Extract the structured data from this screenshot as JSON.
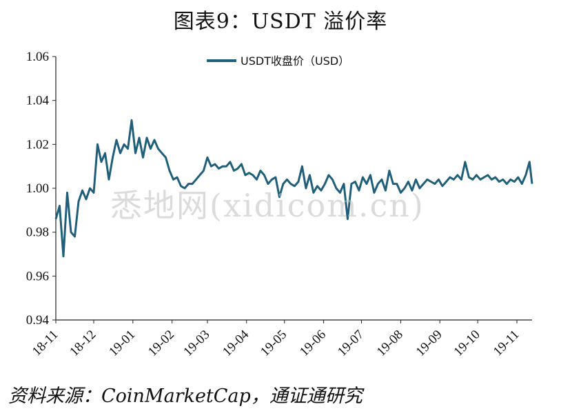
{
  "title": "图表9：USDT 溢价率",
  "source": "资料来源：CoinMarketCap，通证通研究",
  "watermark": "悉地网(xidicom.cn)",
  "colors": {
    "series": "#1f5f7a",
    "axis": "#222222"
  },
  "chart_data": {
    "type": "line",
    "xlabel": "",
    "ylabel": "",
    "ylim": [
      0.94,
      1.06
    ],
    "yticks": [
      "1.06",
      "1.04",
      "1.02",
      "1.00",
      "0.98",
      "0.96",
      "0.94"
    ],
    "xticks": [
      "18-11",
      "18-12",
      "19-01",
      "19-02",
      "19-03",
      "19-04",
      "19-05",
      "19-06",
      "19-07",
      "19-08",
      "19-09",
      "19-10",
      "19-11"
    ],
    "legend": "top-center",
    "grid": false,
    "series": [
      {
        "name": "USDT收盘价（USD）",
        "x": [
          "2018-11-01",
          "2018-11-04",
          "2018-11-07",
          "2018-11-10",
          "2018-11-13",
          "2018-11-16",
          "2018-11-19",
          "2018-11-22",
          "2018-11-25",
          "2018-11-28",
          "2018-12-01",
          "2018-12-04",
          "2018-12-07",
          "2018-12-10",
          "2018-12-13",
          "2018-12-16",
          "2018-12-19",
          "2018-12-22",
          "2018-12-25",
          "2018-12-28",
          "2018-12-31",
          "2019-01-03",
          "2019-01-06",
          "2019-01-09",
          "2019-01-12",
          "2019-01-15",
          "2019-01-18",
          "2019-01-21",
          "2019-01-24",
          "2019-01-27",
          "2019-01-30",
          "2019-02-02",
          "2019-02-05",
          "2019-02-08",
          "2019-02-11",
          "2019-02-14",
          "2019-02-17",
          "2019-02-20",
          "2019-02-23",
          "2019-02-26",
          "2019-03-01",
          "2019-03-04",
          "2019-03-07",
          "2019-03-10",
          "2019-03-13",
          "2019-03-16",
          "2019-03-19",
          "2019-03-22",
          "2019-03-25",
          "2019-03-28",
          "2019-03-31",
          "2019-04-03",
          "2019-04-06",
          "2019-04-09",
          "2019-04-12",
          "2019-04-15",
          "2019-04-18",
          "2019-04-21",
          "2019-04-24",
          "2019-04-27",
          "2019-04-30",
          "2019-05-03",
          "2019-05-06",
          "2019-05-09",
          "2019-05-12",
          "2019-05-15",
          "2019-05-18",
          "2019-05-21",
          "2019-05-24",
          "2019-05-27",
          "2019-05-30",
          "2019-06-02",
          "2019-06-05",
          "2019-06-08",
          "2019-06-11",
          "2019-06-14",
          "2019-06-17",
          "2019-06-20",
          "2019-06-23",
          "2019-06-26",
          "2019-06-29",
          "2019-07-02",
          "2019-07-05",
          "2019-07-08",
          "2019-07-11",
          "2019-07-14",
          "2019-07-17",
          "2019-07-20",
          "2019-07-23",
          "2019-07-26",
          "2019-07-29",
          "2019-08-01",
          "2019-08-04",
          "2019-08-07",
          "2019-08-10",
          "2019-08-13",
          "2019-08-16",
          "2019-08-19",
          "2019-08-22",
          "2019-08-25",
          "2019-08-28",
          "2019-08-31",
          "2019-09-03",
          "2019-09-06",
          "2019-09-09",
          "2019-09-12",
          "2019-09-15",
          "2019-09-18",
          "2019-09-21",
          "2019-09-24",
          "2019-09-27",
          "2019-09-30",
          "2019-10-03",
          "2019-10-06",
          "2019-10-09",
          "2019-10-12",
          "2019-10-15",
          "2019-10-18",
          "2019-10-21",
          "2019-10-24",
          "2019-10-27",
          "2019-10-30",
          "2019-11-02",
          "2019-11-05",
          "2019-11-08",
          "2019-11-11",
          "2019-11-13"
        ],
        "values": [
          0.986,
          0.992,
          0.969,
          0.998,
          0.98,
          0.978,
          0.994,
          0.999,
          0.995,
          1.0,
          0.998,
          1.02,
          1.012,
          1.016,
          1.004,
          1.014,
          1.022,
          1.016,
          1.02,
          1.018,
          1.031,
          1.016,
          1.023,
          1.014,
          1.023,
          1.018,
          1.022,
          1.018,
          1.016,
          1.014,
          1.008,
          1.004,
          1.005,
          1.001,
          1.0,
          1.002,
          1.002,
          1.004,
          1.006,
          1.008,
          1.014,
          1.01,
          1.011,
          1.009,
          1.01,
          1.01,
          1.012,
          1.008,
          1.009,
          1.011,
          1.006,
          1.007,
          1.006,
          1.004,
          1.008,
          1.006,
          1.002,
          1.004,
          1.005,
          0.996,
          1.002,
          1.004,
          1.002,
          1.001,
          1.003,
          1.01,
          1.0,
          1.006,
          0.998,
          1.001,
          0.999,
          1.002,
          1.006,
          1.004,
          1.0,
          0.998,
          1.002,
          0.986,
          1.002,
          1.003,
          0.999,
          1.005,
          1.002,
          1.006,
          0.998,
          1.002,
          1.004,
          0.999,
          1.008,
          1.002,
          1.002,
          0.998,
          1.0,
          1.003,
          0.999,
          1.004,
          1.0,
          1.002,
          1.004,
          1.003,
          1.002,
          1.004,
          1.001,
          1.003,
          1.005,
          1.004,
          1.006,
          1.004,
          1.012,
          1.005,
          1.004,
          1.006,
          1.004,
          1.005,
          1.006,
          1.004,
          1.005,
          1.003,
          1.004,
          1.002,
          1.004,
          1.003,
          1.005,
          1.002,
          1.006,
          1.012,
          1.002
        ]
      }
    ]
  }
}
